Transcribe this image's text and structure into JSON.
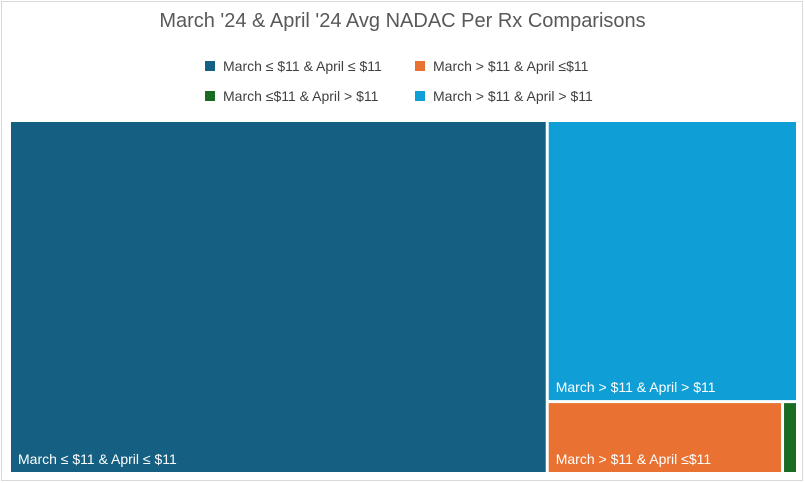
{
  "chart_data": {
    "type": "treemap",
    "title": "March '24 & April '24 Avg NADAC Per Rx Comparisons",
    "legend_position": "top",
    "series": [
      {
        "name": "March ≤ $11 & April ≤ $11",
        "value": 68.5,
        "color": "#156082",
        "label": "March ≤ $11 & April ≤ $11"
      },
      {
        "name": "March > $11 & April > $11",
        "value": 25.3,
        "color": "#0f9ed5",
        "label": "March > $11 & April > $11"
      },
      {
        "name": "March > $11 & April ≤$11",
        "value": 5.9,
        "color": "#e97132",
        "label": "March > $11 & April ≤$11"
      },
      {
        "name": "March ≤$11 & April > $11",
        "value": 0.3,
        "color": "#196b24",
        "label": ""
      }
    ],
    "legend_order": [
      0,
      2,
      3,
      1
    ]
  }
}
